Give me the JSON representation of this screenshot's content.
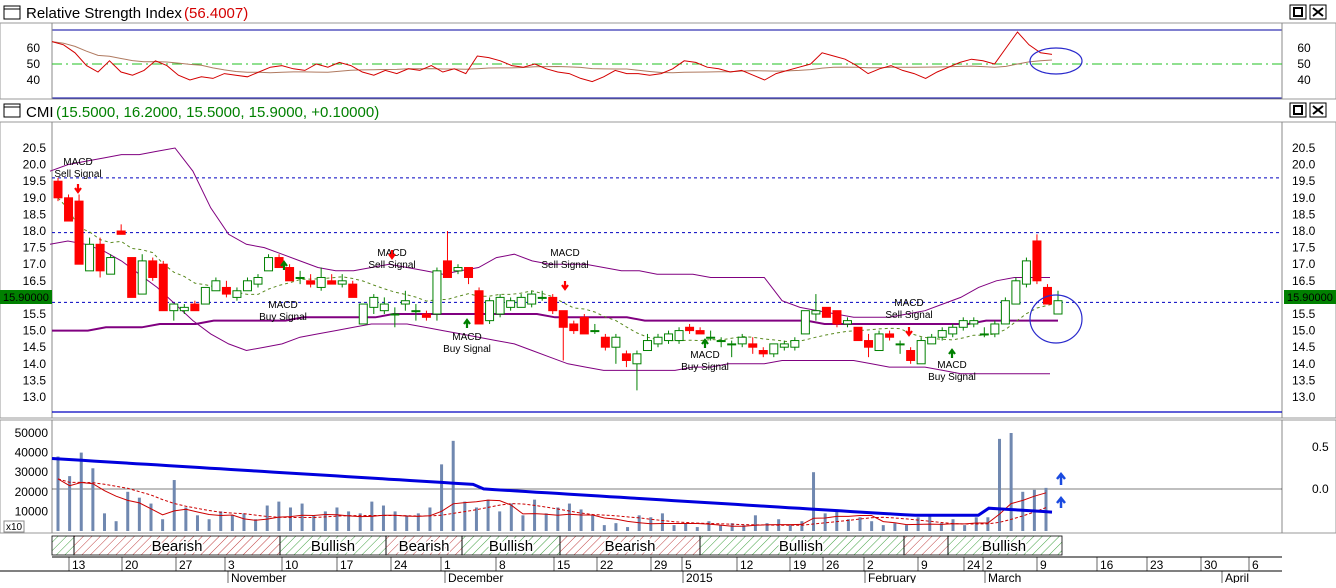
{
  "rsi_panel": {
    "title": "Relative Strength Index",
    "value": "(56.4007)",
    "colors": {
      "rsi": "#d40000",
      "signal": "#b07a60",
      "level": "#22c022",
      "circle": "#2a2acc"
    },
    "y_ticks": [
      "60",
      "50",
      "40"
    ]
  },
  "price_panel": {
    "title": "CMI",
    "ohlc": "(15.5000, 16.2000, 15.5000, 15.9000, +0.10000)",
    "last_price_tag": "15.90000",
    "y_ticks": [
      "20.5",
      "20.0",
      "19.5",
      "19.0",
      "18.5",
      "18.0",
      "17.5",
      "17.0",
      "16.5",
      "16.0",
      "15.5",
      "15.0",
      "14.5",
      "14.0",
      "13.5",
      "13.0"
    ],
    "colors": {
      "up": "#008000",
      "down": "#ff0000",
      "bands": "#800080",
      "sma": "#800080",
      "ref_line": "#0000c0",
      "tag_bg": "#008000"
    },
    "annotations": [
      {
        "line1": "MACD",
        "line2": "Sell Signal"
      },
      {
        "line1": "MACD",
        "line2": "Buy Signal"
      },
      {
        "line1": "MACD",
        "line2": "Sell Signal"
      },
      {
        "line1": "MACD",
        "line2": "Buy Signal"
      },
      {
        "line1": "MACD",
        "line2": "Sell Signal"
      },
      {
        "line1": "MACD",
        "line2": "Buy Signal"
      },
      {
        "line1": "MACD",
        "line2": "Sell Signal"
      },
      {
        "line1": "MACD",
        "line2": "Buy Signal"
      }
    ]
  },
  "volume_panel": {
    "left_ticks": [
      "50000",
      "40000",
      "30000",
      "20000",
      "10000"
    ],
    "right_ticks": [
      "0.5",
      "0.0"
    ],
    "multiplier_label": "x10",
    "colors": {
      "bars": "#7088b0",
      "obv": "#0000dd",
      "osc": "#cc0000"
    }
  },
  "trend_band": {
    "labels": [
      "Bearish",
      "Bullish",
      "Bearish",
      "Bullish",
      "Bearish",
      "Bullish",
      "Bullish"
    ]
  },
  "x_axis": {
    "day_labels": [
      "13",
      "20",
      "27",
      "3",
      "10",
      "17",
      "24",
      "1",
      "8",
      "15",
      "22",
      "29",
      "5",
      "12",
      "19",
      "26",
      "2",
      "9",
      "24",
      "2",
      "9",
      "16",
      "23",
      "30",
      "6"
    ],
    "month_labels": [
      "November",
      "December",
      "2015",
      "February",
      "March",
      "April"
    ]
  },
  "chart_data": {
    "type": "candlestick",
    "title": "CMI",
    "ylim": [
      12.6,
      20.9
    ],
    "candles": [
      {
        "o": 19.5,
        "h": 19.6,
        "l": 18.9,
        "c": 19.0
      },
      {
        "o": 19.0,
        "h": 19.1,
        "l": 18.3,
        "c": 18.3
      },
      {
        "o": 18.9,
        "h": 19.1,
        "l": 17.0,
        "c": 17.0
      },
      {
        "o": 16.8,
        "h": 17.8,
        "l": 16.8,
        "c": 17.6
      },
      {
        "o": 17.6,
        "h": 17.8,
        "l": 16.6,
        "c": 16.8
      },
      {
        "o": 16.7,
        "h": 17.3,
        "l": 16.7,
        "c": 17.2
      },
      {
        "o": 18.0,
        "h": 18.2,
        "l": 17.9,
        "c": 17.9
      },
      {
        "o": 17.2,
        "h": 17.2,
        "l": 16.0,
        "c": 16.0
      },
      {
        "o": 16.1,
        "h": 17.3,
        "l": 16.1,
        "c": 17.1
      },
      {
        "o": 17.1,
        "h": 17.2,
        "l": 16.5,
        "c": 16.6
      },
      {
        "o": 17.0,
        "h": 17.1,
        "l": 15.6,
        "c": 15.6
      },
      {
        "o": 15.6,
        "h": 15.8,
        "l": 15.3,
        "c": 15.8
      },
      {
        "o": 15.6,
        "h": 15.8,
        "l": 15.5,
        "c": 15.7
      },
      {
        "o": 15.8,
        "h": 15.9,
        "l": 15.6,
        "c": 15.6
      },
      {
        "o": 15.8,
        "h": 16.3,
        "l": 15.8,
        "c": 16.3
      },
      {
        "o": 16.2,
        "h": 16.6,
        "l": 16.2,
        "c": 16.5
      },
      {
        "o": 16.3,
        "h": 16.5,
        "l": 16.0,
        "c": 16.1
      },
      {
        "o": 16.0,
        "h": 16.3,
        "l": 15.9,
        "c": 16.2
      },
      {
        "o": 16.2,
        "h": 16.6,
        "l": 16.2,
        "c": 16.5
      },
      {
        "o": 16.4,
        "h": 16.7,
        "l": 16.3,
        "c": 16.6
      },
      {
        "o": 16.8,
        "h": 17.3,
        "l": 16.8,
        "c": 17.2
      },
      {
        "o": 17.2,
        "h": 17.3,
        "l": 16.9,
        "c": 16.9
      },
      {
        "o": 16.9,
        "h": 17.0,
        "l": 16.5,
        "c": 16.5
      },
      {
        "o": 16.6,
        "h": 16.8,
        "l": 16.4,
        "c": 16.6
      },
      {
        "o": 16.5,
        "h": 16.7,
        "l": 16.3,
        "c": 16.4
      },
      {
        "o": 16.3,
        "h": 16.9,
        "l": 16.2,
        "c": 16.6
      },
      {
        "o": 16.5,
        "h": 16.7,
        "l": 16.4,
        "c": 16.4
      },
      {
        "o": 16.4,
        "h": 16.7,
        "l": 16.3,
        "c": 16.5
      },
      {
        "o": 16.4,
        "h": 16.5,
        "l": 16.0,
        "c": 16.0
      },
      {
        "o": 15.2,
        "h": 15.8,
        "l": 15.2,
        "c": 15.8
      },
      {
        "o": 15.7,
        "h": 16.1,
        "l": 15.5,
        "c": 16.0
      },
      {
        "o": 15.6,
        "h": 16.0,
        "l": 15.5,
        "c": 15.8
      },
      {
        "o": 15.5,
        "h": 15.7,
        "l": 15.1,
        "c": 15.5
      },
      {
        "o": 15.8,
        "h": 16.2,
        "l": 15.6,
        "c": 15.9
      },
      {
        "o": 15.6,
        "h": 15.8,
        "l": 15.3,
        "c": 15.6
      },
      {
        "o": 15.5,
        "h": 15.6,
        "l": 15.3,
        "c": 15.4
      },
      {
        "o": 15.5,
        "h": 16.9,
        "l": 15.3,
        "c": 16.8
      },
      {
        "o": 17.1,
        "h": 18.0,
        "l": 16.6,
        "c": 16.6
      },
      {
        "o": 16.8,
        "h": 17.0,
        "l": 16.7,
        "c": 16.9
      },
      {
        "o": 16.9,
        "h": 16.9,
        "l": 16.4,
        "c": 16.6
      },
      {
        "o": 16.2,
        "h": 16.3,
        "l": 15.2,
        "c": 15.2
      },
      {
        "o": 15.3,
        "h": 16.0,
        "l": 15.2,
        "c": 15.9
      },
      {
        "o": 15.5,
        "h": 16.1,
        "l": 15.4,
        "c": 16.0
      },
      {
        "o": 15.7,
        "h": 16.0,
        "l": 15.6,
        "c": 15.9
      },
      {
        "o": 15.7,
        "h": 16.1,
        "l": 15.7,
        "c": 16.0
      },
      {
        "o": 15.8,
        "h": 16.2,
        "l": 15.7,
        "c": 16.1
      },
      {
        "o": 16.0,
        "h": 16.2,
        "l": 15.9,
        "c": 16.0
      },
      {
        "o": 16.0,
        "h": 16.1,
        "l": 15.5,
        "c": 15.6
      },
      {
        "o": 15.6,
        "h": 15.6,
        "l": 14.1,
        "c": 15.1
      },
      {
        "o": 15.2,
        "h": 15.3,
        "l": 14.9,
        "c": 15.0
      },
      {
        "o": 15.4,
        "h": 15.5,
        "l": 14.9,
        "c": 14.9
      },
      {
        "o": 15.0,
        "h": 15.2,
        "l": 14.9,
        "c": 15.0
      },
      {
        "o": 14.8,
        "h": 14.9,
        "l": 14.4,
        "c": 14.5
      },
      {
        "o": 14.5,
        "h": 14.9,
        "l": 14.0,
        "c": 14.8
      },
      {
        "o": 14.3,
        "h": 14.4,
        "l": 13.9,
        "c": 14.1
      },
      {
        "o": 14.0,
        "h": 14.4,
        "l": 13.2,
        "c": 14.3
      },
      {
        "o": 14.4,
        "h": 14.9,
        "l": 14.4,
        "c": 14.7
      },
      {
        "o": 14.6,
        "h": 14.9,
        "l": 14.5,
        "c": 14.8
      },
      {
        "o": 14.7,
        "h": 15.0,
        "l": 14.6,
        "c": 14.9
      },
      {
        "o": 14.7,
        "h": 15.1,
        "l": 14.6,
        "c": 15.0
      },
      {
        "o": 15.1,
        "h": 15.2,
        "l": 14.9,
        "c": 15.0
      },
      {
        "o": 15.0,
        "h": 15.1,
        "l": 14.9,
        "c": 14.9
      },
      {
        "o": 14.8,
        "h": 15.0,
        "l": 14.7,
        "c": 14.8
      },
      {
        "o": 14.7,
        "h": 14.8,
        "l": 14.5,
        "c": 14.7
      },
      {
        "o": 14.6,
        "h": 14.7,
        "l": 14.2,
        "c": 14.6
      },
      {
        "o": 14.6,
        "h": 14.9,
        "l": 14.5,
        "c": 14.8
      },
      {
        "o": 14.6,
        "h": 14.8,
        "l": 14.3,
        "c": 14.5
      },
      {
        "o": 14.4,
        "h": 14.5,
        "l": 14.2,
        "c": 14.3
      },
      {
        "o": 14.3,
        "h": 14.6,
        "l": 14.2,
        "c": 14.6
      },
      {
        "o": 14.5,
        "h": 14.7,
        "l": 14.4,
        "c": 14.6
      },
      {
        "o": 14.5,
        "h": 14.8,
        "l": 14.4,
        "c": 14.7
      },
      {
        "o": 14.9,
        "h": 15.6,
        "l": 14.9,
        "c": 15.6
      },
      {
        "o": 15.5,
        "h": 16.1,
        "l": 15.3,
        "c": 15.6
      },
      {
        "o": 15.7,
        "h": 15.7,
        "l": 15.4,
        "c": 15.4
      },
      {
        "o": 15.6,
        "h": 15.6,
        "l": 15.1,
        "c": 15.2
      },
      {
        "o": 15.2,
        "h": 15.4,
        "l": 15.1,
        "c": 15.3
      },
      {
        "o": 15.1,
        "h": 15.1,
        "l": 14.7,
        "c": 14.7
      },
      {
        "o": 14.7,
        "h": 14.9,
        "l": 14.2,
        "c": 14.5
      },
      {
        "o": 14.4,
        "h": 15.0,
        "l": 14.4,
        "c": 14.9
      },
      {
        "o": 14.9,
        "h": 15.0,
        "l": 14.7,
        "c": 14.8
      },
      {
        "o": 14.6,
        "h": 14.7,
        "l": 14.3,
        "c": 14.6
      },
      {
        "o": 14.4,
        "h": 14.5,
        "l": 14.0,
        "c": 14.1
      },
      {
        "o": 14.0,
        "h": 14.8,
        "l": 14.0,
        "c": 14.7
      },
      {
        "o": 14.6,
        "h": 14.9,
        "l": 14.6,
        "c": 14.8
      },
      {
        "o": 14.8,
        "h": 15.1,
        "l": 14.7,
        "c": 15.0
      },
      {
        "o": 14.9,
        "h": 15.2,
        "l": 14.8,
        "c": 15.1
      },
      {
        "o": 15.1,
        "h": 15.4,
        "l": 15.0,
        "c": 15.3
      },
      {
        "o": 15.2,
        "h": 15.4,
        "l": 15.1,
        "c": 15.3
      },
      {
        "o": 14.9,
        "h": 15.1,
        "l": 14.8,
        "c": 14.9
      },
      {
        "o": 14.9,
        "h": 15.3,
        "l": 14.8,
        "c": 15.2
      },
      {
        "o": 15.2,
        "h": 16.0,
        "l": 15.2,
        "c": 15.9
      },
      {
        "o": 15.8,
        "h": 16.6,
        "l": 15.8,
        "c": 16.5
      },
      {
        "o": 16.4,
        "h": 17.2,
        "l": 16.3,
        "c": 17.1
      },
      {
        "o": 17.7,
        "h": 17.9,
        "l": 16.4,
        "c": 16.5
      },
      {
        "o": 16.3,
        "h": 16.4,
        "l": 15.8,
        "c": 15.8
      },
      {
        "o": 15.5,
        "h": 16.2,
        "l": 15.5,
        "c": 15.9
      }
    ],
    "upper_band": [
      19.8,
      20.0,
      20.1,
      20.2,
      20.3,
      20.3,
      20.4,
      20.5,
      19.8,
      18.7,
      17.9,
      17.6,
      17.5,
      17.3,
      17.1,
      16.9,
      16.8,
      16.8,
      16.9,
      17.0,
      16.9,
      16.8,
      16.7,
      16.8,
      16.9,
      17.2,
      17.3,
      17.1,
      17.0,
      17.0,
      17.0,
      16.9,
      16.8,
      16.8,
      16.7,
      16.7,
      16.7,
      16.6,
      16.6,
      16.6,
      16.6,
      15.9,
      15.7,
      15.6,
      15.5,
      15.4,
      15.4,
      15.4,
      15.5,
      15.6,
      15.8,
      16.0,
      16.3,
      16.5,
      16.6,
      16.6,
      16.6
    ],
    "lower_band": [
      17.6,
      17.7,
      17.6,
      17.4,
      17.1,
      16.7,
      16.3,
      15.8,
      15.3,
      14.9,
      14.6,
      14.4,
      14.5,
      14.6,
      14.8,
      14.9,
      15.0,
      15.1,
      15.2,
      15.2,
      15.2,
      15.1,
      15.0,
      14.9,
      14.8,
      14.7,
      14.6,
      14.4,
      14.2,
      14.0,
      13.9,
      13.8,
      13.8,
      13.8,
      13.8,
      13.8,
      13.9,
      13.9,
      14.0,
      14.0,
      14.0,
      14.1,
      14.1,
      14.1,
      14.1,
      14.1,
      14.0,
      13.9,
      13.9,
      13.9,
      13.8,
      13.7,
      13.7,
      13.7,
      13.7,
      13.7,
      13.7
    ],
    "sma": [
      15.0,
      15.0,
      15.0,
      15.1,
      15.1,
      15.1,
      15.2,
      15.2,
      15.2,
      15.3,
      15.3,
      15.3,
      15.3,
      15.3,
      15.4,
      15.4,
      15.4,
      15.4,
      15.4,
      15.5,
      15.5,
      15.5,
      15.5,
      15.5,
      15.5,
      15.5,
      15.5,
      15.5,
      15.4,
      15.4,
      15.4,
      15.4,
      15.4,
      15.3,
      15.3,
      15.3,
      15.3,
      15.3,
      15.3,
      15.3,
      15.3,
      15.3,
      15.3,
      15.2,
      15.2,
      15.2,
      15.2,
      15.2,
      15.2,
      15.2,
      15.2,
      15.2,
      15.3,
      15.3,
      15.3,
      15.3,
      15.3
    ],
    "reference_lines": [
      19.6,
      17.95,
      15.85,
      12.55
    ],
    "rsi": [
      64,
      62,
      57,
      49,
      45,
      52,
      45,
      43,
      46,
      52,
      49,
      43,
      40,
      42,
      41,
      44,
      43,
      42,
      45,
      48,
      49,
      47,
      46,
      50,
      48,
      51,
      49,
      45,
      43,
      46,
      44,
      47,
      46,
      49,
      45,
      47,
      44,
      55,
      54,
      52,
      49,
      48,
      50,
      47,
      45,
      44,
      41,
      39,
      42,
      46,
      44,
      44,
      43,
      44,
      47,
      52,
      51,
      48,
      47,
      45,
      46,
      43,
      40,
      44,
      46,
      48,
      50,
      57,
      55,
      53,
      49,
      44,
      47,
      49,
      46,
      44,
      41,
      45,
      48,
      51,
      53,
      52,
      50,
      60,
      70,
      62,
      57,
      56
    ],
    "volume": [
      38000,
      28000,
      40000,
      32000,
      9000,
      5000,
      20000,
      17000,
      14000,
      6000,
      26000,
      12000,
      8000,
      6000,
      10000,
      8000,
      9000,
      6000,
      13000,
      15000,
      12000,
      14000,
      8000,
      10000,
      12000,
      10000,
      9000,
      15000,
      13000,
      10000,
      8000,
      9000,
      12000,
      34000,
      46000,
      15000,
      12000,
      16000,
      10000,
      14000,
      8000,
      16000,
      9000,
      12000,
      14000,
      11000,
      8000,
      3000,
      4000,
      2000,
      8000,
      7000,
      9000,
      3000,
      4000,
      2000,
      5000,
      3000,
      4000,
      3000,
      8000,
      4000,
      6000,
      3000,
      5000,
      30000,
      9000,
      11000,
      6000,
      7000,
      5000,
      3000,
      4000,
      3000,
      7000,
      8000,
      4000,
      6000,
      3000,
      7000,
      7000,
      47000,
      50000,
      20000,
      21000,
      22000
    ]
  }
}
